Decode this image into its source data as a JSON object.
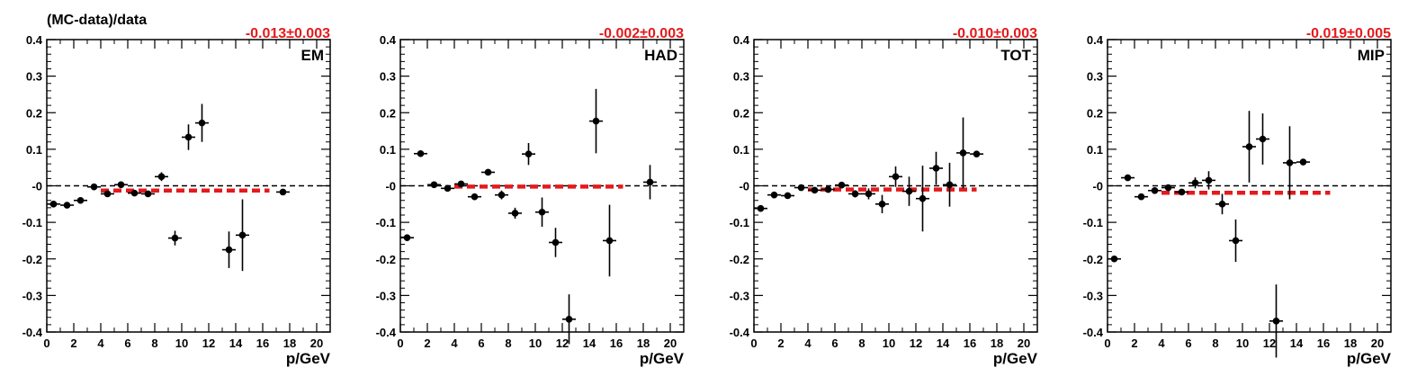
{
  "figure": {
    "ylabel": "(MC-data)/data"
  },
  "colors": {
    "axis": "#000000",
    "points": "#000000",
    "fit": "#e41a1c",
    "zero_line": "#000000"
  },
  "chart_data": [
    {
      "type": "scatter",
      "panel_label": "EM",
      "fit_label": "-0.013±0.003",
      "xlabel": "p/GeV",
      "xlim": [
        0,
        21
      ],
      "ylim": [
        -0.4,
        0.4
      ],
      "xticks": [
        0,
        2,
        4,
        6,
        8,
        10,
        12,
        14,
        16,
        18,
        20
      ],
      "yticks": [
        -0.4,
        -0.3,
        -0.2,
        -0.1,
        0,
        0.1,
        0.2,
        0.3,
        0.4
      ],
      "ytick_labels": [
        "-0.4",
        "-0.3",
        "-0.2",
        "-0.1",
        "-0",
        "0.1",
        "0.2",
        "0.3",
        "0.4"
      ],
      "reference_line": 0,
      "fit": {
        "value": -0.013,
        "x_range": [
          4,
          16.5
        ]
      },
      "points": [
        {
          "x": 0.5,
          "y": -0.05,
          "err": 0.005
        },
        {
          "x": 1.5,
          "y": -0.053,
          "err": 0.005
        },
        {
          "x": 2.5,
          "y": -0.04,
          "err": 0.005
        },
        {
          "x": 3.5,
          "y": -0.003,
          "err": 0.005
        },
        {
          "x": 4.5,
          "y": -0.022,
          "err": 0.006
        },
        {
          "x": 5.5,
          "y": 0.003,
          "err": 0.006
        },
        {
          "x": 6.5,
          "y": -0.02,
          "err": 0.006
        },
        {
          "x": 7.5,
          "y": -0.022,
          "err": 0.007
        },
        {
          "x": 8.5,
          "y": 0.025,
          "err": 0.012
        },
        {
          "x": 9.5,
          "y": -0.143,
          "err": 0.02
        },
        {
          "x": 10.5,
          "y": 0.133,
          "err": 0.035
        },
        {
          "x": 11.5,
          "y": 0.172,
          "err": 0.052
        },
        {
          "x": 13.5,
          "y": -0.175,
          "err": 0.05
        },
        {
          "x": 14.5,
          "y": -0.135,
          "err": 0.098
        },
        {
          "x": 17.5,
          "y": -0.017,
          "err": 0.005
        }
      ]
    },
    {
      "type": "scatter",
      "panel_label": "HAD",
      "fit_label": "-0.002±0.003",
      "xlabel": "p/GeV",
      "xlim": [
        0,
        21
      ],
      "ylim": [
        -0.4,
        0.4
      ],
      "xticks": [
        0,
        2,
        4,
        6,
        8,
        10,
        12,
        14,
        16,
        18,
        20
      ],
      "yticks": [
        -0.4,
        -0.3,
        -0.2,
        -0.1,
        0,
        0.1,
        0.2,
        0.3,
        0.4
      ],
      "ytick_labels": [
        "-0.4",
        "-0.3",
        "-0.2",
        "-0.1",
        "-0",
        "0.1",
        "0.2",
        "0.3",
        "0.4"
      ],
      "reference_line": 0,
      "fit": {
        "value": -0.002,
        "x_range": [
          4,
          16.5
        ]
      },
      "points": [
        {
          "x": 0.5,
          "y": -0.142,
          "err": 0.005
        },
        {
          "x": 1.5,
          "y": 0.088,
          "err": 0.005
        },
        {
          "x": 2.5,
          "y": 0.003,
          "err": 0.005
        },
        {
          "x": 3.5,
          "y": -0.007,
          "err": 0.005
        },
        {
          "x": 4.5,
          "y": 0.005,
          "err": 0.006
        },
        {
          "x": 5.5,
          "y": -0.03,
          "err": 0.006
        },
        {
          "x": 6.5,
          "y": 0.037,
          "err": 0.007
        },
        {
          "x": 7.5,
          "y": -0.025,
          "err": 0.012
        },
        {
          "x": 8.5,
          "y": -0.075,
          "err": 0.015
        },
        {
          "x": 9.5,
          "y": 0.087,
          "err": 0.03
        },
        {
          "x": 10.5,
          "y": -0.072,
          "err": 0.04
        },
        {
          "x": 11.5,
          "y": -0.155,
          "err": 0.04
        },
        {
          "x": 12.5,
          "y": -0.365,
          "err": 0.068
        },
        {
          "x": 14.5,
          "y": 0.177,
          "err": 0.088
        },
        {
          "x": 15.5,
          "y": -0.15,
          "err": 0.098
        },
        {
          "x": 18.5,
          "y": 0.01,
          "err": 0.047
        }
      ]
    },
    {
      "type": "scatter",
      "panel_label": "TOT",
      "fit_label": "-0.010±0.003",
      "xlabel": "p/GeV",
      "xlim": [
        0,
        21
      ],
      "ylim": [
        -0.4,
        0.4
      ],
      "xticks": [
        0,
        2,
        4,
        6,
        8,
        10,
        12,
        14,
        16,
        18,
        20
      ],
      "yticks": [
        -0.4,
        -0.3,
        -0.2,
        -0.1,
        0,
        0.1,
        0.2,
        0.3,
        0.4
      ],
      "ytick_labels": [
        "-0.4",
        "-0.3",
        "-0.2",
        "-0.1",
        "-0",
        "0.1",
        "0.2",
        "0.3",
        "0.4"
      ],
      "reference_line": 0,
      "fit": {
        "value": -0.01,
        "x_range": [
          4,
          16.5
        ]
      },
      "points": [
        {
          "x": 0.5,
          "y": -0.062,
          "err": 0.005
        },
        {
          "x": 1.5,
          "y": -0.025,
          "err": 0.005
        },
        {
          "x": 2.5,
          "y": -0.027,
          "err": 0.005
        },
        {
          "x": 3.5,
          "y": -0.005,
          "err": 0.005
        },
        {
          "x": 4.5,
          "y": -0.012,
          "err": 0.005
        },
        {
          "x": 5.5,
          "y": -0.01,
          "err": 0.005
        },
        {
          "x": 6.5,
          "y": 0.002,
          "err": 0.006
        },
        {
          "x": 7.5,
          "y": -0.022,
          "err": 0.01
        },
        {
          "x": 8.5,
          "y": -0.022,
          "err": 0.015
        },
        {
          "x": 9.5,
          "y": -0.05,
          "err": 0.025
        },
        {
          "x": 10.5,
          "y": 0.025,
          "err": 0.028
        },
        {
          "x": 11.5,
          "y": -0.015,
          "err": 0.04
        },
        {
          "x": 12.5,
          "y": -0.035,
          "err": 0.09
        },
        {
          "x": 13.5,
          "y": 0.048,
          "err": 0.045
        },
        {
          "x": 14.5,
          "y": 0.003,
          "err": 0.06
        },
        {
          "x": 15.5,
          "y": 0.09,
          "err": 0.097
        },
        {
          "x": 16.5,
          "y": 0.087,
          "err": 0.005
        }
      ]
    },
    {
      "type": "scatter",
      "panel_label": "MIP",
      "fit_label": "-0.019±0.005",
      "xlabel": "p/GeV",
      "xlim": [
        0,
        21
      ],
      "ylim": [
        -0.4,
        0.4
      ],
      "xticks": [
        0,
        2,
        4,
        6,
        8,
        10,
        12,
        14,
        16,
        18,
        20
      ],
      "yticks": [
        -0.4,
        -0.3,
        -0.2,
        -0.1,
        0,
        0.1,
        0.2,
        0.3,
        0.4
      ],
      "ytick_labels": [
        "-0.4",
        "-0.3",
        "-0.2",
        "-0.1",
        "-0",
        "0.1",
        "0.2",
        "0.3",
        "0.4"
      ],
      "reference_line": 0,
      "fit": {
        "value": -0.019,
        "x_range": [
          4,
          16.5
        ]
      },
      "points": [
        {
          "x": 0.5,
          "y": -0.2,
          "err": 0.005
        },
        {
          "x": 1.5,
          "y": 0.022,
          "err": 0.005
        },
        {
          "x": 2.5,
          "y": -0.03,
          "err": 0.005
        },
        {
          "x": 3.5,
          "y": -0.013,
          "err": 0.006
        },
        {
          "x": 4.5,
          "y": -0.005,
          "err": 0.006
        },
        {
          "x": 5.5,
          "y": -0.017,
          "err": 0.006
        },
        {
          "x": 6.5,
          "y": 0.008,
          "err": 0.015
        },
        {
          "x": 7.5,
          "y": 0.015,
          "err": 0.025
        },
        {
          "x": 8.5,
          "y": -0.05,
          "err": 0.028
        },
        {
          "x": 9.5,
          "y": -0.15,
          "err": 0.058
        },
        {
          "x": 10.5,
          "y": 0.107,
          "err": 0.098
        },
        {
          "x": 11.5,
          "y": 0.128,
          "err": 0.07
        },
        {
          "x": 12.5,
          "y": -0.37,
          "err": 0.1
        },
        {
          "x": 13.5,
          "y": 0.063,
          "err": 0.1
        },
        {
          "x": 14.5,
          "y": 0.065,
          "err": 0.007
        }
      ]
    }
  ]
}
